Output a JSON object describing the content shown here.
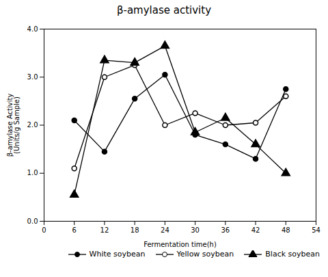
{
  "chart_data": {
    "type": "line",
    "title": "β-amylase  activity",
    "xlabel": "Fermentation time(h)",
    "ylabel": "β-amylase Activity\n(Units/g Sample)",
    "x": [
      6,
      12,
      18,
      24,
      30,
      36,
      42,
      48
    ],
    "series": [
      {
        "name": "White soybean",
        "color": "#000000",
        "marker": "circle",
        "line_style": "solid",
        "values": [
          2.1,
          1.45,
          2.55,
          3.05,
          1.8,
          1.6,
          1.3,
          2.75
        ]
      },
      {
        "name": "Yellow soybean",
        "color": "#000000",
        "marker": "open_circle",
        "line_style": "solid",
        "values": [
          1.1,
          3.0,
          3.25,
          2.0,
          2.25,
          2.0,
          2.05,
          2.6
        ]
      },
      {
        "name": "Black soybean",
        "color": "#000000",
        "marker": "triangle",
        "line_style": "solid",
        "values": [
          0.55,
          3.35,
          3.3,
          3.65,
          1.85,
          2.15,
          1.6,
          1.0
        ]
      }
    ],
    "xlim": [
      0,
      54
    ],
    "ylim": [
      0.0,
      4.0
    ],
    "xticks": [
      0,
      6,
      12,
      18,
      24,
      30,
      36,
      42,
      48,
      54
    ],
    "yticks": [
      {
        "value": 0,
        "label": "0.0"
      },
      {
        "value": 1,
        "label": "1.0"
      },
      {
        "value": 2,
        "label": "2.0"
      },
      {
        "value": 3,
        "label": "3.0"
      },
      {
        "value": 4,
        "label": "4.0"
      }
    ],
    "grid": false,
    "legend": "lower right"
  }
}
